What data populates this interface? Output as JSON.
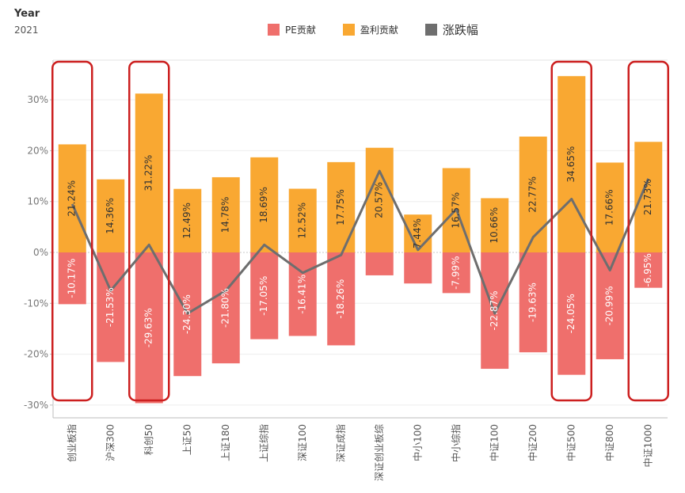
{
  "filter": {
    "label": "Year",
    "value": "2021"
  },
  "legend": [
    {
      "label": "PE贡献",
      "color": "#ef6f6c",
      "icon": "square-swatch"
    },
    {
      "label": "盈利贡献",
      "color": "#f9a832",
      "icon": "square-swatch"
    },
    {
      "label": "涨跌幅",
      "color": "#6e6e6e",
      "icon": "square-swatch"
    }
  ],
  "chart_data": {
    "type": "bar",
    "stacked": true,
    "categories": [
      "创业板指",
      "沪深300",
      "科创50",
      "上证50",
      "上证180",
      "上证综指",
      "深证100",
      "深证成指",
      "深证创业板综",
      "中小100",
      "中小综指",
      "中证100",
      "中证200",
      "中证500",
      "中证800",
      "中证1000"
    ],
    "series": [
      {
        "name": "PE贡献",
        "type": "bar",
        "color": "#ef6f6c",
        "values": [
          -10.17,
          -21.53,
          -29.63,
          -24.3,
          -21.8,
          -17.05,
          -16.41,
          -18.26,
          -4.5,
          -6.1,
          -7.99,
          -22.87,
          -19.63,
          -24.05,
          -20.99,
          -6.95
        ],
        "labels": [
          "-10.17%",
          "-21.53%",
          "-29.63%",
          "-24.30%",
          "-21.80%",
          "-17.05%",
          "-16.41%",
          "-18.26%",
          "",
          "",
          "-7.99%",
          "-22.87%",
          "-19.63%",
          "-24.05%",
          "-20.99%",
          "-6.95%"
        ]
      },
      {
        "name": "盈利贡献",
        "type": "bar",
        "color": "#f9a832",
        "values": [
          21.24,
          14.36,
          31.22,
          12.49,
          14.78,
          18.69,
          12.52,
          17.75,
          20.57,
          7.44,
          16.57,
          10.66,
          22.77,
          34.65,
          17.66,
          21.73
        ],
        "labels": [
          "21.24%",
          "14.36%",
          "31.22%",
          "12.49%",
          "14.78%",
          "18.69%",
          "12.52%",
          "17.75%",
          "20.57%",
          "7.44%",
          "16.57%",
          "10.66%",
          "22.77%",
          "34.65%",
          "17.66%",
          "21.73%"
        ]
      },
      {
        "name": "涨跌幅",
        "type": "line",
        "color": "#6e6e6e",
        "values": [
          9.5,
          -7.5,
          1.5,
          -12.0,
          -7.5,
          1.5,
          -4.0,
          -0.5,
          16.0,
          0.5,
          8.5,
          -12.0,
          3.0,
          10.5,
          -3.5,
          14.5
        ]
      }
    ],
    "yticks": [
      "30%",
      "20%",
      "10%",
      "0%",
      "-10%",
      "-20%",
      "-30%"
    ],
    "ytick_values": [
      30,
      20,
      10,
      0,
      -10,
      -20,
      -30
    ],
    "ylim": [
      -31,
      38
    ],
    "grid": true,
    "legend_position": "top",
    "highlighted_categories": [
      "创业板指",
      "科创50",
      "中证500",
      "中证1000"
    ],
    "highlight_color": "#cc1f1f"
  }
}
